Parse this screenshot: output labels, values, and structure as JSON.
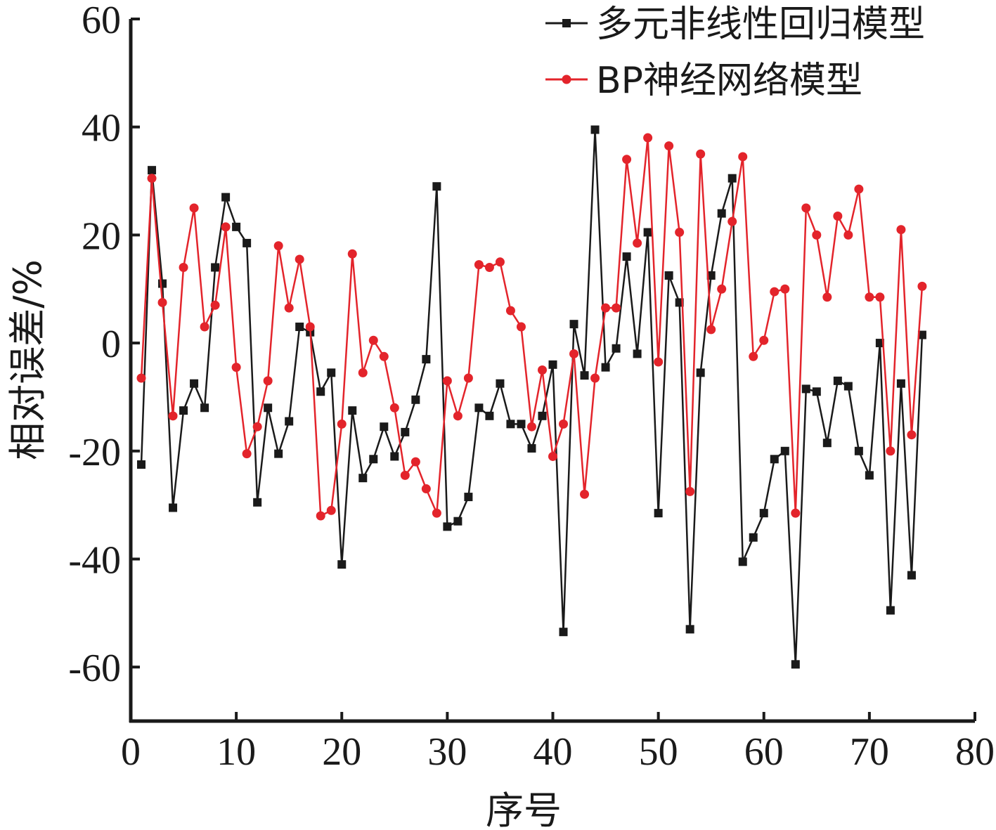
{
  "chart_data": {
    "type": "line",
    "xlabel": "序号",
    "ylabel": "相对误差/%",
    "xlim": [
      0,
      80
    ],
    "ylim": [
      -70,
      60
    ],
    "xticks": [
      0,
      10,
      20,
      30,
      40,
      50,
      60,
      70,
      80
    ],
    "yticks": [
      -60,
      -40,
      -20,
      0,
      20,
      40,
      60
    ],
    "grid": false,
    "legend_position": "top-right",
    "x": [
      1,
      2,
      3,
      4,
      5,
      6,
      7,
      8,
      9,
      10,
      11,
      12,
      13,
      14,
      15,
      16,
      17,
      18,
      19,
      20,
      21,
      22,
      23,
      24,
      25,
      26,
      27,
      28,
      29,
      30,
      31,
      32,
      33,
      34,
      35,
      36,
      37,
      38,
      39,
      40,
      41,
      42,
      43,
      44,
      45,
      46,
      47,
      48,
      49,
      50,
      51,
      52,
      53,
      54,
      55,
      56,
      57,
      58,
      59,
      60,
      61,
      62,
      63,
      64,
      65,
      66,
      67,
      68,
      69,
      70,
      71,
      72,
      73,
      74,
      75
    ],
    "series": [
      {
        "name": "多元非线性回归模型",
        "color": "#1a1a1a",
        "marker": "square",
        "values": [
          -22.5,
          32,
          11,
          -30.5,
          -12.5,
          -7.5,
          -12,
          14,
          27,
          21.5,
          18.5,
          -29.5,
          -12,
          -20.5,
          -14.5,
          3,
          2,
          -9,
          -5.5,
          -41,
          -12.5,
          -25,
          -21.5,
          -15.5,
          -21,
          -16.5,
          -10.5,
          -3,
          29,
          -34,
          -33,
          -28.5,
          -12,
          -13.5,
          -7.5,
          -15,
          -15,
          -19.5,
          -13.5,
          -4,
          -53.5,
          3.5,
          -6,
          39.5,
          -4.5,
          -1,
          16,
          -2,
          20.5,
          -31.5,
          12.5,
          7.5,
          -53,
          -5.5,
          12.5,
          24,
          30.5,
          -40.5,
          -36,
          -31.5,
          -21.5,
          -20,
          -59.5,
          -8.5,
          -9,
          -18.5,
          -7,
          -8,
          -20,
          -24.5,
          0,
          -49.5,
          -7.5,
          -43,
          1.5
        ]
      },
      {
        "name": "BP神经网络模型",
        "color": "#e3242b",
        "marker": "circle",
        "values": [
          -6.5,
          30.5,
          7.5,
          -13.5,
          14,
          25,
          3,
          7,
          21.5,
          -4.5,
          -20.5,
          -15.5,
          -7,
          18,
          6.5,
          15.5,
          3,
          -32,
          -31,
          -15,
          16.5,
          -5.5,
          0.5,
          -2.5,
          -12,
          -24.5,
          -22,
          -27,
          -31.5,
          -7,
          -13.5,
          -6.5,
          14.5,
          14,
          15,
          6,
          3,
          -15.5,
          -5,
          -21,
          -15,
          -2,
          -28,
          -6.5,
          6.5,
          6.5,
          34,
          18.5,
          38,
          -3.5,
          36.5,
          20.5,
          -27.5,
          35,
          2.5,
          10,
          22.5,
          34.5,
          -2.5,
          0.5,
          9.5,
          10,
          -31.5,
          25,
          20,
          8.5,
          23.5,
          20,
          28.5,
          8.5,
          8.5,
          -20,
          21,
          -17,
          10.5
        ]
      }
    ]
  }
}
